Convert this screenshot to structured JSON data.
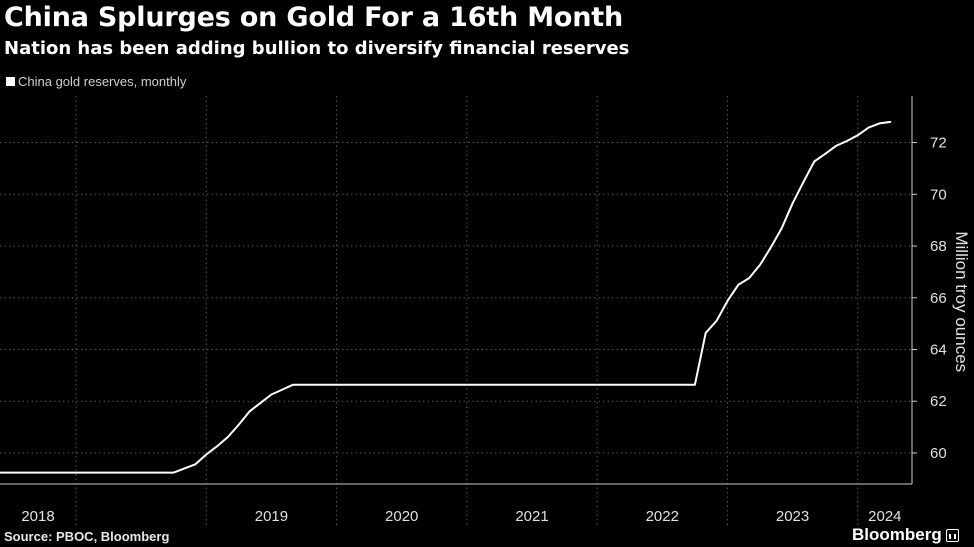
{
  "header": {
    "title": "China Splurges on Gold For a 16th Month",
    "subtitle": "Nation has been adding bullion to diversify financial reserves"
  },
  "footer": {
    "source": "Source: PBOC, Bloomberg",
    "brand": "Bloomberg"
  },
  "colors": {
    "background": "#000000",
    "line": "#ffffff",
    "grid": "#555555"
  },
  "chart_data": {
    "type": "line",
    "title": "China Splurges on Gold For a 16th Month",
    "subtitle": "Nation has been adding bullion to diversify financial reserves",
    "ylabel": "Million troy ounces",
    "xlabel": "",
    "ylim": [
      58.8,
      73.8
    ],
    "yticks": [
      60,
      62,
      64,
      66,
      68,
      70,
      72
    ],
    "xlim": [
      "2017-06",
      "2024-06"
    ],
    "x_tick_labels": [
      "2018",
      "2019",
      "2020",
      "2021",
      "2022",
      "2023",
      "2024"
    ],
    "y_axis_side": "right",
    "grid": true,
    "legend": "top-left",
    "series": [
      {
        "name": "China gold reserves, monthly",
        "x": [
          "2017-06",
          "2018-10",
          "2018-12",
          "2019-01",
          "2019-02",
          "2019-03",
          "2019-04",
          "2019-05",
          "2019-06",
          "2019-07",
          "2019-08",
          "2019-09",
          "2022-10",
          "2022-11",
          "2022-12",
          "2023-01",
          "2023-02",
          "2023-03",
          "2023-04",
          "2023-05",
          "2023-06",
          "2023-07",
          "2023-08",
          "2023-09",
          "2023-10",
          "2023-11",
          "2023-12",
          "2024-01",
          "2024-02",
          "2024-03",
          "2024-04"
        ],
        "values": [
          59.24,
          59.24,
          59.56,
          59.94,
          60.26,
          60.62,
          61.1,
          61.61,
          61.94,
          62.26,
          62.45,
          62.64,
          62.64,
          64.64,
          65.11,
          65.87,
          66.5,
          66.76,
          67.27,
          67.95,
          68.69,
          69.65,
          70.47,
          71.27,
          71.56,
          71.87,
          72.06,
          72.28,
          72.58,
          72.74,
          72.8
        ]
      }
    ]
  }
}
